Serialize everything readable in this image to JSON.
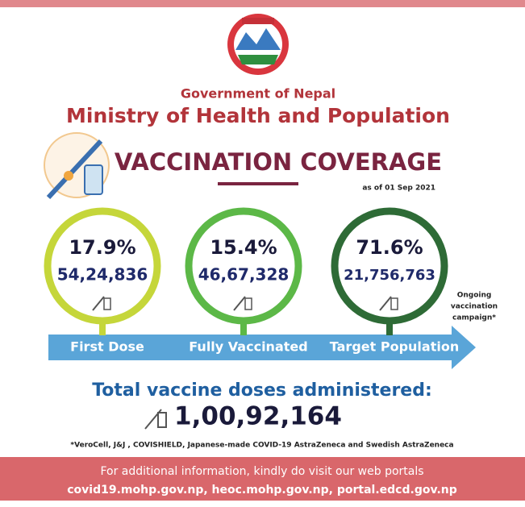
{
  "header": {
    "government": "Government of Nepal",
    "ministry": "Ministry of Health and Population"
  },
  "title": "VACCINATION COVERAGE",
  "as_of": "as of 01 Sep 2021",
  "stats": [
    {
      "percent": "17.9%",
      "count": "54,24,836",
      "label": "First Dose"
    },
    {
      "percent": "15.4%",
      "count": "46,67,328",
      "label": "Fully Vaccinated"
    },
    {
      "percent": "71.6%",
      "count": "21,756,763",
      "label": "Target Population"
    }
  ],
  "note": [
    "Ongoing",
    "vaccination",
    "campaign*"
  ],
  "total": {
    "label": "Total vaccine doses administered:",
    "value": "1,00,92,164"
  },
  "footnote": "*VeroCell, J&J , COVISHIELD, Japanese-made COVID-19 AstraZeneca and Swedish AstraZeneca",
  "footer": {
    "line1": "For additional information, kindly do visit our web portals",
    "line2": "covid19.mohp.gov.np, heoc.mohp.gov.np, portal.edcd.gov.np"
  }
}
